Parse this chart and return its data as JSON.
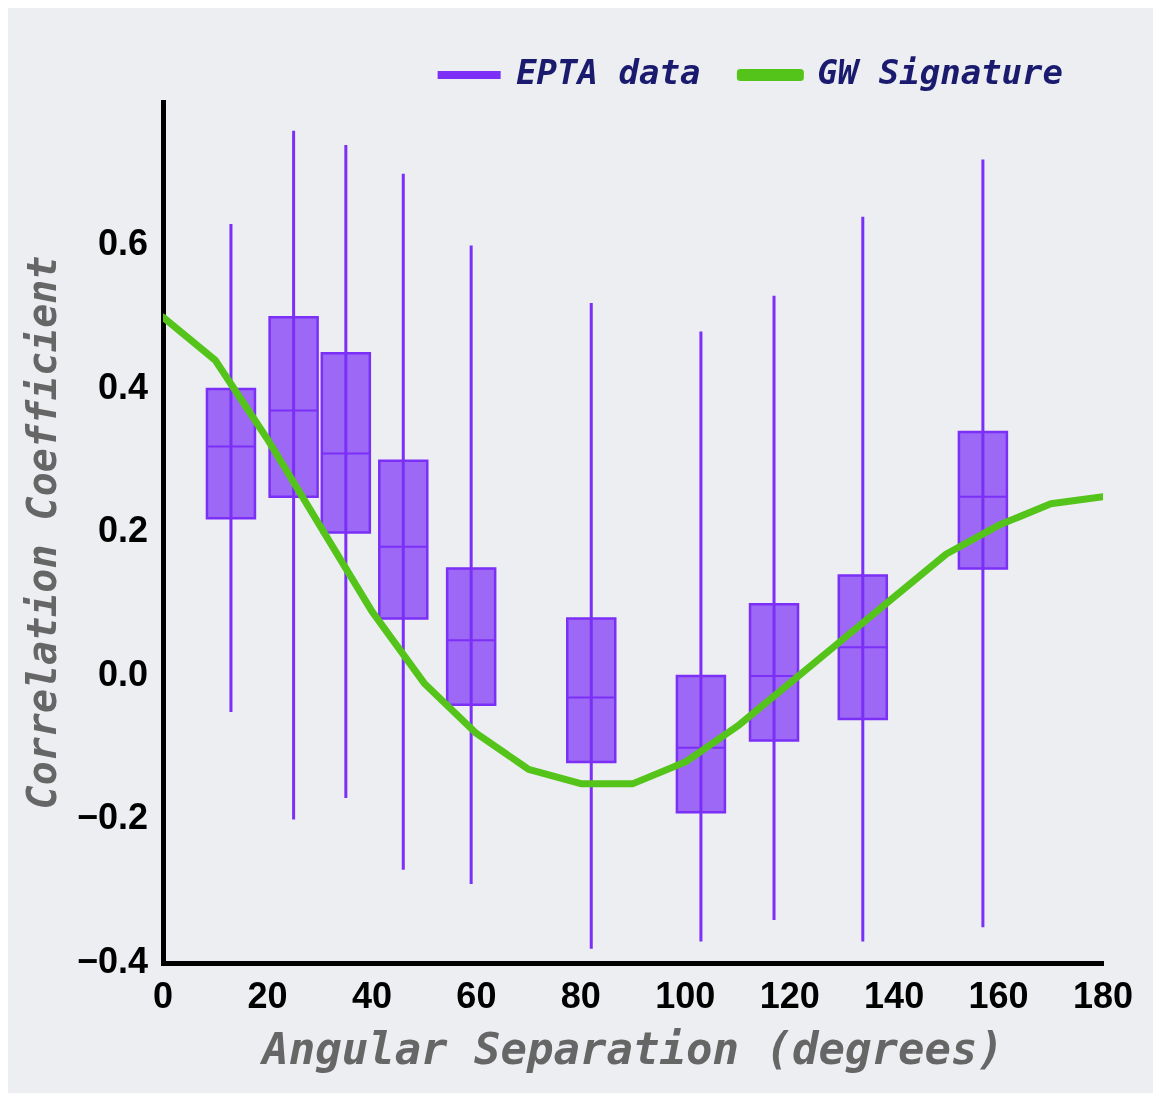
{
  "chart_data": {
    "type": "box",
    "xlabel": "Angular Separation (degrees)",
    "ylabel": "Correlation Coefficient",
    "legend": "top",
    "grid": false,
    "xlim": [
      0,
      180
    ],
    "xticks": [
      0,
      20,
      40,
      60,
      80,
      100,
      120,
      140,
      160,
      180
    ],
    "ylim": [
      -0.4,
      0.8
    ],
    "yticks": [
      {
        "value": -0.4,
        "label": "−0.4"
      },
      {
        "value": -0.2,
        "label": "−0.2"
      },
      {
        "value": 0,
        "label": "0.0"
      },
      0.2,
      0.4,
      0.6
    ],
    "series": [
      {
        "name": "EPTA data",
        "type": "box",
        "color": "#7b2ff7",
        "x": [
          13,
          25,
          35,
          46,
          59,
          82,
          103,
          117,
          134,
          157
        ],
        "boxes": [
          {
            "low": -0.05,
            "q1": 0.22,
            "median": 0.32,
            "q3": 0.4,
            "high": 0.63
          },
          {
            "low": -0.2,
            "q1": 0.25,
            "median": 0.37,
            "q3": 0.5,
            "high": 0.76
          },
          {
            "low": -0.17,
            "q1": 0.2,
            "median": 0.31,
            "q3": 0.45,
            "high": 0.74
          },
          {
            "low": -0.27,
            "q1": 0.08,
            "median": 0.18,
            "q3": 0.3,
            "high": 0.7
          },
          {
            "low": -0.29,
            "q1": -0.04,
            "median": 0.05,
            "q3": 0.15,
            "high": 0.6
          },
          {
            "low": -0.38,
            "q1": -0.12,
            "median": -0.03,
            "q3": 0.08,
            "high": 0.52
          },
          {
            "low": -0.37,
            "q1": -0.19,
            "median": -0.1,
            "q3": 0.0,
            "high": 0.48
          },
          {
            "low": -0.34,
            "q1": -0.09,
            "median": 0.0,
            "q3": 0.1,
            "high": 0.53
          },
          {
            "low": -0.37,
            "q1": -0.06,
            "median": 0.04,
            "q3": 0.14,
            "high": 0.64
          },
          {
            "low": -0.35,
            "q1": 0.15,
            "median": 0.25,
            "q3": 0.34,
            "high": 0.72
          }
        ]
      },
      {
        "name": "GW Signature",
        "type": "line",
        "color": "#55c41a",
        "x": [
          0,
          10,
          20,
          30,
          40,
          50,
          60,
          70,
          80,
          90,
          100,
          110,
          120,
          130,
          140,
          150,
          160,
          170,
          180
        ],
        "values": [
          0.5,
          0.44,
          0.33,
          0.21,
          0.09,
          -0.01,
          -0.08,
          -0.13,
          -0.15,
          -0.15,
          -0.12,
          -0.07,
          -0.01,
          0.05,
          0.11,
          0.17,
          0.21,
          0.24,
          0.25
        ]
      }
    ]
  }
}
